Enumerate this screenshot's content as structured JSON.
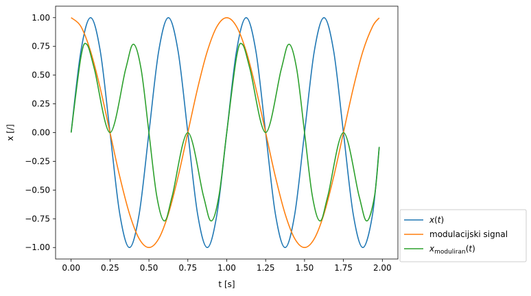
{
  "chart_data": {
    "type": "line",
    "xlabel": "t [s]",
    "ylabel": "x [/]",
    "xlim": [
      -0.1,
      2.1
    ],
    "ylim": [
      -1.1,
      1.1
    ],
    "x_ticks": [
      0.0,
      0.25,
      0.5,
      0.75,
      1.0,
      1.25,
      1.5,
      1.75,
      2.0
    ],
    "x_tick_labels": [
      "0.00",
      "0.25",
      "0.50",
      "0.75",
      "1.00",
      "1.25",
      "1.50",
      "1.75",
      "2.00"
    ],
    "y_ticks": [
      1.0,
      0.75,
      0.5,
      0.25,
      0.0,
      -0.25,
      -0.5,
      -0.75,
      -1.0
    ],
    "y_tick_labels": [
      "1.00",
      "0.75",
      "0.50",
      "0.25",
      "0.00",
      "−0.25",
      "−0.50",
      "−0.75",
      "−1.00"
    ],
    "grid": false,
    "legend_position": "outside-lower-right",
    "series": [
      {
        "name": "x(t)",
        "color": "#1f77b4",
        "x": [
          0.0,
          0.0625,
          0.125,
          0.1875,
          0.25,
          0.3125,
          0.375,
          0.4375,
          0.5,
          0.5625,
          0.625,
          0.6875,
          0.75,
          0.8125,
          0.875,
          0.9375,
          1.0,
          1.0625,
          1.125,
          1.1875,
          1.25,
          1.3125,
          1.375,
          1.4375,
          1.5,
          1.5625,
          1.625,
          1.6875,
          1.75,
          1.8125,
          1.875,
          1.9375,
          1.98
        ],
        "y": [
          0.0,
          0.707,
          1.0,
          0.707,
          0.0,
          -0.707,
          -1.0,
          -0.707,
          0.0,
          0.707,
          1.0,
          0.707,
          0.0,
          -0.707,
          -1.0,
          -0.707,
          0.0,
          0.707,
          1.0,
          0.707,
          0.0,
          -0.707,
          -1.0,
          -0.707,
          0.0,
          0.707,
          1.0,
          0.707,
          0.0,
          -0.707,
          -1.0,
          -0.707,
          -0.125
        ]
      },
      {
        "name": "modulacijski signal",
        "color": "#ff7f0e",
        "x": [
          0.0,
          0.0625,
          0.125,
          0.1875,
          0.25,
          0.3125,
          0.375,
          0.4375,
          0.5,
          0.5625,
          0.625,
          0.6875,
          0.75,
          0.8125,
          0.875,
          0.9375,
          1.0,
          1.0625,
          1.125,
          1.1875,
          1.25,
          1.3125,
          1.375,
          1.4375,
          1.5,
          1.5625,
          1.625,
          1.6875,
          1.75,
          1.8125,
          1.875,
          1.9375,
          1.98
        ],
        "y": [
          1.0,
          0.924,
          0.707,
          0.383,
          0.0,
          -0.383,
          -0.707,
          -0.924,
          -1.0,
          -0.924,
          -0.707,
          -0.383,
          0.0,
          0.383,
          0.707,
          0.924,
          1.0,
          0.924,
          0.707,
          0.383,
          0.0,
          -0.383,
          -0.707,
          -0.924,
          -1.0,
          -0.924,
          -0.707,
          -0.383,
          0.0,
          0.383,
          0.707,
          0.924,
          0.998
        ]
      },
      {
        "name": "x_moduliran(t)",
        "color": "#2ca02c",
        "x": [
          0.0,
          0.0625,
          0.1,
          0.15,
          0.25,
          0.35,
          0.4,
          0.45,
          0.5,
          0.55,
          0.6,
          0.65,
          0.75,
          0.85,
          0.9,
          0.95,
          1.0,
          1.0625,
          1.1,
          1.15,
          1.25,
          1.35,
          1.4,
          1.45,
          1.5,
          1.55,
          1.6,
          1.65,
          1.75,
          1.85,
          1.9,
          1.95,
          1.98
        ],
        "y": [
          0.0,
          0.654,
          0.769,
          0.55,
          0.0,
          0.55,
          0.769,
          0.55,
          0.0,
          -0.55,
          -0.769,
          -0.55,
          0.0,
          -0.55,
          -0.769,
          -0.55,
          0.0,
          0.654,
          0.769,
          0.55,
          0.0,
          0.55,
          0.769,
          0.55,
          0.0,
          -0.55,
          -0.769,
          -0.55,
          0.0,
          -0.55,
          -0.769,
          -0.55,
          -0.125
        ]
      }
    ]
  }
}
